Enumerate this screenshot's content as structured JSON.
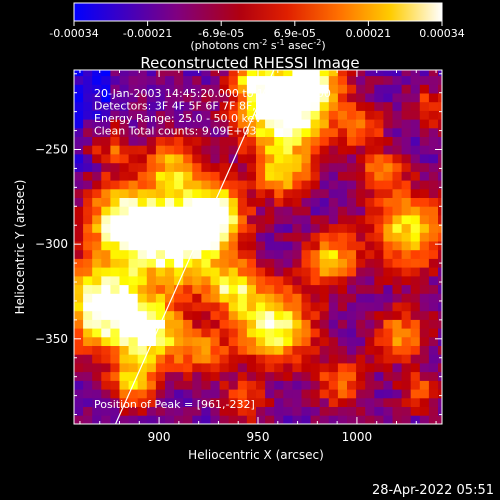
{
  "colorbar": {
    "tick_labels": [
      "-0.00034",
      "-0.00021",
      "-6.9e-05",
      "6.9e-05",
      "0.00021",
      "0.00034"
    ],
    "units_label": "(photons cm",
    "units_exp1": "-2",
    "units_mid": " s",
    "units_exp2": "-1",
    "units_mid2": " asec",
    "units_exp3": "-2",
    "units_end": ")"
  },
  "chart_data": {
    "type": "heatmap",
    "title": "Reconstructed RHESSI Image",
    "xlabel": "Heliocentric X (arcsec)",
    "ylabel": "Heliocentric Y (arcsec)",
    "xlim": [
      857,
      1043
    ],
    "ylim": [
      -395,
      -208
    ],
    "xticks": [
      900,
      950,
      1000
    ],
    "yticks": [
      -250,
      -300,
      -350
    ],
    "colorbar_range": [
      -0.00034,
      0.00034
    ],
    "colormap": [
      "#0000ff",
      "#4000c0",
      "#800080",
      "#c00000",
      "#ff4000",
      "#ff9000",
      "#ffff00",
      "#ffffff"
    ],
    "annotations": [
      "20-Jan-2003 14:45:20.000 to 14:51:20.000",
      "Detectors: 3F 4F 5F 6F 7F 8F, 9F",
      "Energy Range: 25.0 - 50.0 keV",
      "Clean    Total counts: 9.09E+03"
    ],
    "peak_label": "Position of Peak = [961,-232]",
    "peak": [
      961,
      -232
    ],
    "limb_line": {
      "x": [
        878,
        958
      ],
      "y": [
        -395,
        -208
      ]
    },
    "grid": false
  },
  "footer": {
    "date": "28-Apr-2022 05:51"
  }
}
